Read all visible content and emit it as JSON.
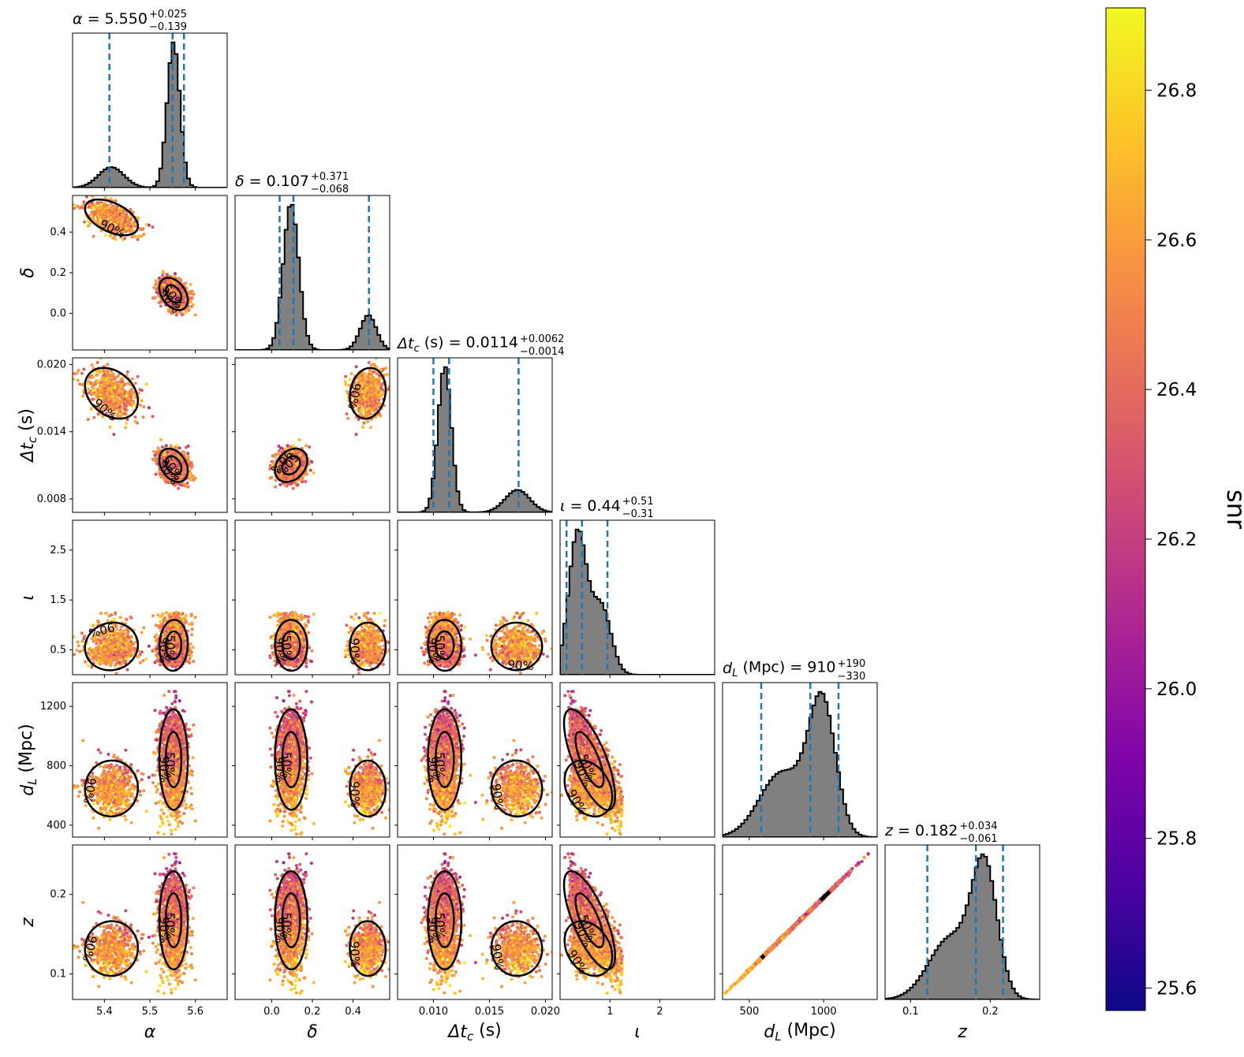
{
  "chart_data": {
    "type": "scatter",
    "figure_kind": "corner plot",
    "colorbar": {
      "label": "snr",
      "colormap": "plasma",
      "range": [
        25.57,
        26.91
      ],
      "ticks": [
        "25.6",
        "25.8",
        "26.0",
        "26.2",
        "26.4",
        "26.6",
        "26.8"
      ]
    },
    "histogram_style": {
      "fill": "#808080",
      "edge": "#000000",
      "quantile_line_color": "#1f77b4",
      "quantile_line_style": "dashed"
    },
    "contour_levels": [
      "50%",
      "90%"
    ],
    "parameters": [
      {
        "key": "alpha",
        "label": "α",
        "title_value": "α = 5.550",
        "title_plus": "+0.025",
        "title_minus": "−0.139",
        "range": [
          5.33,
          5.67
        ],
        "ticks": [
          {
            "value": 5.4,
            "label": "5.4"
          },
          {
            "value": 5.5,
            "label": "5.5"
          },
          {
            "value": 5.6,
            "label": "5.6"
          }
        ],
        "quantiles": [
          5.411,
          5.55,
          5.575
        ],
        "modes": [
          {
            "mu": 5.415,
            "sigma": 0.028,
            "w": 0.22
          },
          {
            "mu": 5.552,
            "sigma": 0.014,
            "w": 0.78
          }
        ]
      },
      {
        "key": "delta",
        "label": "δ",
        "title_value": "δ = 0.107",
        "title_plus": "+0.371",
        "title_minus": "−0.068",
        "range": [
          -0.18,
          0.58
        ],
        "ticks": [
          {
            "value": 0.0,
            "label": "0.0"
          },
          {
            "value": 0.2,
            "label": "0.2"
          },
          {
            "value": 0.4,
            "label": "0.4"
          }
        ],
        "quantiles": [
          0.039,
          0.107,
          0.478
        ],
        "modes": [
          {
            "mu": 0.095,
            "sigma": 0.038,
            "w": 0.8
          },
          {
            "mu": 0.475,
            "sigma": 0.04,
            "w": 0.2
          }
        ]
      },
      {
        "key": "dtc",
        "label": "Δt_c (s)",
        "title_value": "Δt_c (s) = 0.0114",
        "title_plus": "+0.0062",
        "title_minus": "−0.0014",
        "range": [
          0.0068,
          0.0206
        ],
        "ticks": [
          {
            "value": 0.008,
            "label": "0.008"
          },
          {
            "value": 0.014,
            "label": "0.014"
          },
          {
            "value": 0.02,
            "label": "0.020"
          }
        ],
        "ticks_x": [
          {
            "value": 0.01,
            "label": "0.010"
          },
          {
            "value": 0.015,
            "label": "0.015"
          },
          {
            "value": 0.02,
            "label": "0.020"
          }
        ],
        "quantiles": [
          0.01,
          0.0114,
          0.0176
        ],
        "modes": [
          {
            "mu": 0.011,
            "sigma": 0.0006,
            "w": 0.78
          },
          {
            "mu": 0.0175,
            "sigma": 0.0011,
            "w": 0.22
          }
        ]
      },
      {
        "key": "iota",
        "label": "ι",
        "title_value": "ι = 0.44",
        "title_plus": "+0.51",
        "title_minus": "−0.31",
        "range": [
          0.0,
          3.1
        ],
        "ticks": [
          {
            "value": 0.5,
            "label": "0.5"
          },
          {
            "value": 1.5,
            "label": "1.5"
          },
          {
            "value": 2.5,
            "label": "2.5"
          }
        ],
        "ticks_x": [
          {
            "value": 1,
            "label": "1"
          },
          {
            "value": 2,
            "label": "2"
          }
        ],
        "quantiles": [
          0.13,
          0.44,
          0.95
        ],
        "modes": [
          {
            "mu": 0.35,
            "sigma": 0.18,
            "w": 0.65
          },
          {
            "mu": 0.82,
            "sigma": 0.2,
            "w": 0.35
          }
        ]
      },
      {
        "key": "dL",
        "label": "d_L (Mpc)",
        "title_value": "d_L (Mpc) = 910",
        "title_plus": "+190",
        "title_minus": "−330",
        "range": [
          320,
          1360
        ],
        "ticks": [
          {
            "value": 400,
            "label": "400"
          },
          {
            "value": 800,
            "label": "800"
          },
          {
            "value": 1200,
            "label": "1200"
          }
        ],
        "ticks_x": [
          {
            "value": 500,
            "label": "500"
          },
          {
            "value": 1000,
            "label": "1000"
          }
        ],
        "quantiles": [
          580,
          910,
          1100
        ],
        "modes": [
          {
            "mu": 720,
            "sigma": 150,
            "w": 0.45
          },
          {
            "mu": 990,
            "sigma": 90,
            "w": 0.55
          }
        ]
      },
      {
        "key": "z",
        "label": "z",
        "title_value": "z = 0.182",
        "title_plus": "+0.034",
        "title_minus": "−0.061",
        "range": [
          0.068,
          0.262
        ],
        "ticks": [
          {
            "value": 0.1,
            "label": "0.1"
          },
          {
            "value": 0.2,
            "label": "0.2"
          }
        ],
        "quantiles": [
          0.121,
          0.182,
          0.216
        ],
        "modes": [
          {
            "mu": 0.15,
            "sigma": 0.027,
            "w": 0.45
          },
          {
            "mu": 0.193,
            "sigma": 0.016,
            "w": 0.55
          }
        ]
      }
    ]
  }
}
